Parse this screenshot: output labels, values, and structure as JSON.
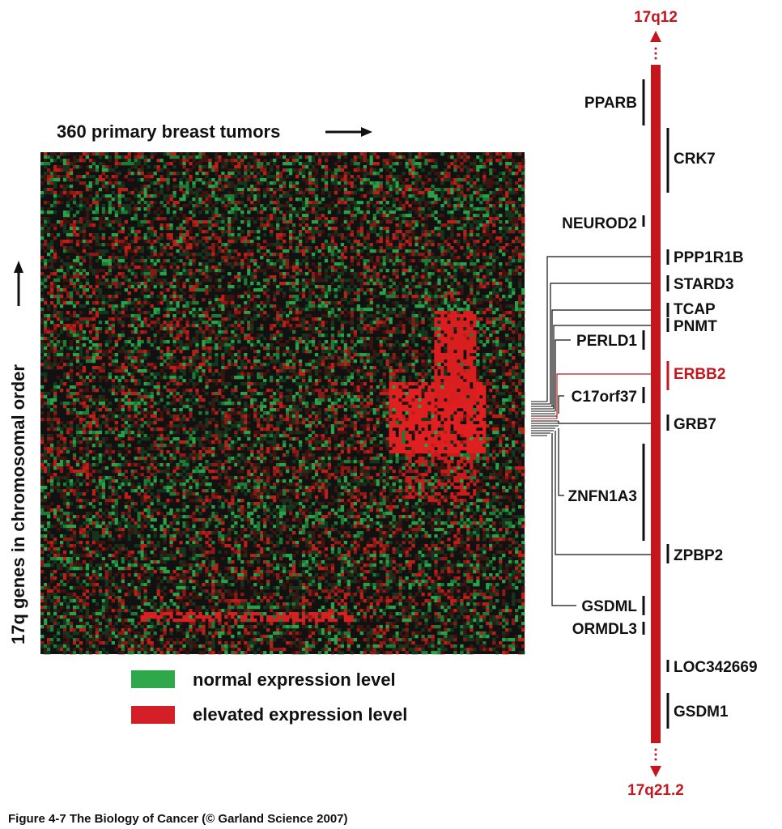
{
  "header": {
    "columns_label": "360 primary breast tumors",
    "rows_label": "17q genes in chromosomal order"
  },
  "heatmap": {
    "colors": {
      "low": "#22b14c",
      "mid": "#111111",
      "high": "#d81e1e"
    }
  },
  "legend": {
    "items": [
      {
        "label": "normal expression level",
        "color": "#2ea84a"
      },
      {
        "label": "elevated expression level",
        "color": "#d32027"
      }
    ]
  },
  "chromosome": {
    "top_band": "17q12",
    "bottom_band": "17q21.2",
    "color": "#c4161c"
  },
  "genes": [
    {
      "id": "pparb",
      "label": "PPARB"
    },
    {
      "id": "crk7",
      "label": "CRK7"
    },
    {
      "id": "neurod2",
      "label": "NEUROD2"
    },
    {
      "id": "ppp1r1b",
      "label": "PPP1R1B"
    },
    {
      "id": "stard3",
      "label": "STARD3"
    },
    {
      "id": "tcap",
      "label": "TCAP"
    },
    {
      "id": "pnmt",
      "label": "PNMT"
    },
    {
      "id": "perld1",
      "label": "PERLD1"
    },
    {
      "id": "erbb2",
      "label": "ERBB2",
      "highlight": true
    },
    {
      "id": "c17orf37",
      "label": "C17orf37"
    },
    {
      "id": "grb7",
      "label": "GRB7"
    },
    {
      "id": "znfn1a3",
      "label": "ZNFN1A3"
    },
    {
      "id": "zpbp2",
      "label": "ZPBP2"
    },
    {
      "id": "gsdml",
      "label": "GSDML"
    },
    {
      "id": "ormdl3",
      "label": "ORMDL3"
    },
    {
      "id": "loc342669",
      "label": "LOC342669"
    },
    {
      "id": "gsdm1",
      "label": "GSDM1"
    }
  ],
  "caption": "Figure 4-7  The Biology of Cancer (© Garland Science 2007)"
}
